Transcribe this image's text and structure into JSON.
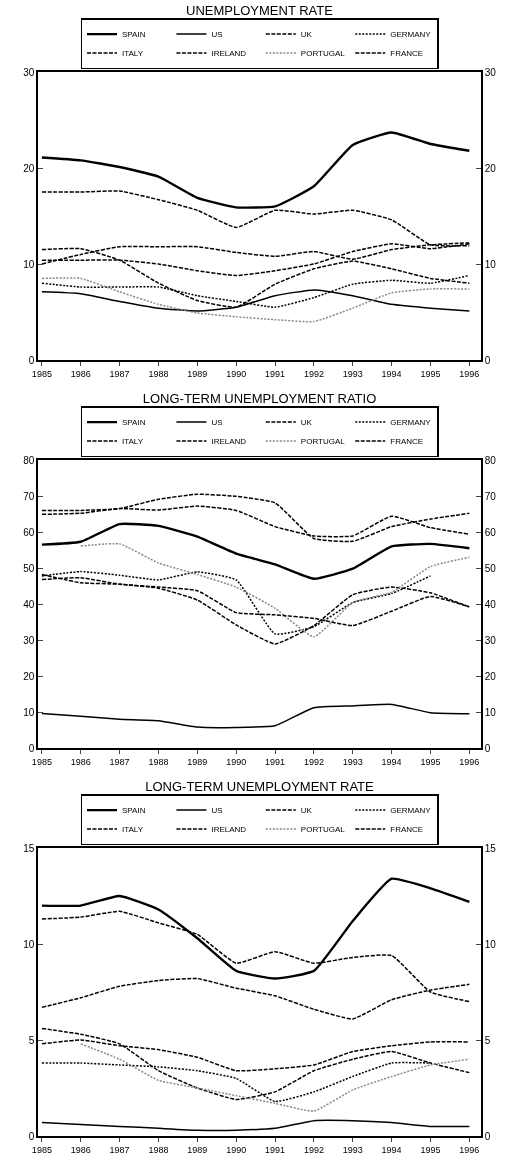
{
  "chart_data": [
    {
      "type": "line",
      "title": "UNEMPLOYMENT RATE",
      "x": [
        1985,
        1986,
        1987,
        1988,
        1989,
        1990,
        1991,
        1992,
        1993,
        1994,
        1995,
        1996
      ],
      "xlim": [
        1984.9,
        1996.3
      ],
      "xticks": [
        1985,
        1986,
        1987,
        1988,
        1989,
        1990,
        1991,
        1992,
        1993,
        1994,
        1995,
        1996
      ],
      "ylim": [
        0,
        30
      ],
      "yticks": [
        0,
        10,
        20,
        30
      ],
      "y2lim": [
        0,
        30
      ],
      "y2ticks": [
        0,
        10,
        20,
        30
      ],
      "grid": false,
      "legend": "top",
      "marker": "none",
      "series": [
        {
          "name": "SPAIN",
          "color": "#000000",
          "line_style": "solid",
          "values": [
            21.1,
            20.8,
            20.1,
            19.1,
            16.9,
            15.9,
            16.0,
            18.1,
            22.4,
            23.7,
            22.5,
            21.8
          ]
        },
        {
          "name": "US",
          "color": "#000000",
          "line_style": "solid",
          "values": [
            7.1,
            6.9,
            6.1,
            5.4,
            5.1,
            5.5,
            6.7,
            7.3,
            6.7,
            5.8,
            5.4,
            5.1
          ]
        },
        {
          "name": "UK",
          "color": "#000000",
          "line_style": "dashed",
          "values": [
            11.5,
            11.6,
            10.4,
            8.0,
            6.2,
            5.5,
            7.9,
            9.5,
            10.3,
            9.5,
            8.5,
            8.0
          ]
        },
        {
          "name": "GERMANY",
          "color": "#000000",
          "line_style": "dotted",
          "values": [
            8.0,
            7.6,
            7.6,
            7.6,
            6.7,
            6.1,
            5.5,
            6.5,
            7.9,
            8.3,
            8.0,
            8.8
          ]
        },
        {
          "name": "ITALY",
          "color": "#000000",
          "line_style": "dashed",
          "values": [
            10.0,
            11.0,
            11.8,
            11.8,
            11.8,
            11.2,
            10.8,
            11.3,
            10.5,
            11.5,
            12.0,
            12.2
          ]
        },
        {
          "name": "IRELAND",
          "color": "#000000",
          "line_style": "dashed",
          "values": [
            17.5,
            17.5,
            17.6,
            16.7,
            15.6,
            13.8,
            15.6,
            15.2,
            15.6,
            14.6,
            12.0,
            11.9
          ]
        },
        {
          "name": "PORTUGAL",
          "color": "#888888",
          "line_style": "dotted",
          "values": [
            8.5,
            8.5,
            7.1,
            5.8,
            4.9,
            4.5,
            4.2,
            4.0,
            5.4,
            7.0,
            7.4,
            7.4
          ]
        },
        {
          "name": "FRANCE",
          "color": "#000000",
          "line_style": "dashed",
          "values": [
            10.4,
            10.4,
            10.4,
            10.0,
            9.3,
            8.8,
            9.3,
            10.0,
            11.3,
            12.1,
            11.6,
            12.1
          ]
        }
      ]
    },
    {
      "type": "line",
      "title": "LONG-TERM UNEMPLOYMENT RATIO",
      "x": [
        1985,
        1986,
        1987,
        1988,
        1989,
        1990,
        1991,
        1992,
        1993,
        1994,
        1995,
        1996
      ],
      "xlim": [
        1984.9,
        1996.3
      ],
      "xticks": [
        1985,
        1986,
        1987,
        1988,
        1989,
        1990,
        1991,
        1992,
        1993,
        1994,
        1995,
        1996
      ],
      "ylim": [
        0,
        80
      ],
      "yticks": [
        0,
        10,
        20,
        30,
        40,
        50,
        60,
        70,
        80
      ],
      "y2lim": [
        0,
        80
      ],
      "y2ticks": [
        0,
        10,
        20,
        30,
        40,
        50,
        60,
        70,
        80
      ],
      "grid": false,
      "legend": "top",
      "marker": "none",
      "series": [
        {
          "name": "SPAIN",
          "color": "#000000",
          "line_style": "solid",
          "values": [
            56.5,
            57.3,
            62.2,
            61.7,
            58.7,
            54.0,
            51.0,
            47.0,
            49.8,
            56.0,
            56.7,
            55.5
          ]
        },
        {
          "name": "US",
          "color": "#000000",
          "line_style": "solid",
          "values": [
            9.6,
            8.8,
            8.0,
            7.6,
            5.8,
            5.7,
            6.2,
            11.2,
            11.7,
            12.1,
            9.8,
            9.5
          ]
        },
        {
          "name": "UK",
          "color": "#000000",
          "line_style": "dashed",
          "values": [
            48.2,
            45.9,
            45.5,
            44.4,
            41.1,
            34.2,
            28.9,
            34.0,
            42.6,
            44.7,
            43.1,
            39.2
          ]
        },
        {
          "name": "GERMANY",
          "color": "#000000",
          "line_style": "dotted",
          "values": [
            47.8,
            49.0,
            48.0,
            46.7,
            48.9,
            46.7,
            31.7,
            33.7,
            40.4,
            42.9,
            47.8,
            null
          ]
        },
        {
          "name": "ITALY",
          "color": "#000000",
          "line_style": "dashed",
          "values": [
            66.0,
            66.0,
            66.5,
            69.1,
            70.5,
            69.9,
            68.1,
            58.2,
            57.4,
            61.5,
            63.6,
            65.2
          ]
        },
        {
          "name": "IRELAND",
          "color": "#000000",
          "line_style": "dashed",
          "values": [
            64.9,
            65.2,
            66.5,
            66.1,
            67.2,
            66.0,
            61.5,
            58.9,
            58.9,
            64.4,
            61.2,
            59.4
          ]
        },
        {
          "name": "PORTUGAL",
          "color": "#888888",
          "line_style": "dotted",
          "values": [
            null,
            56.1,
            56.7,
            51.4,
            48.2,
            44.7,
            38.8,
            30.9,
            40.4,
            43.3,
            50.4,
            53.0
          ]
        },
        {
          "name": "FRANCE",
          "color": "#000000",
          "line_style": "dashed",
          "values": [
            46.8,
            47.3,
            45.5,
            44.7,
            43.7,
            37.6,
            37.0,
            36.0,
            34.0,
            38.0,
            42.1,
            39.2
          ]
        }
      ]
    },
    {
      "type": "line",
      "title": "LONG-TERM UNEMPLOYMENT RATE",
      "x": [
        1985,
        1986,
        1987,
        1988,
        1989,
        1990,
        1991,
        1992,
        1993,
        1994,
        1995,
        1996
      ],
      "xlim": [
        1984.9,
        1996.3
      ],
      "xticks": [
        1985,
        1986,
        1987,
        1988,
        1989,
        1990,
        1991,
        1992,
        1993,
        1994,
        1995,
        1996
      ],
      "ylim": [
        0,
        15
      ],
      "yticks": [
        0,
        5,
        10,
        15
      ],
      "y2lim": [
        0,
        15
      ],
      "y2ticks": [
        0,
        5,
        10,
        15
      ],
      "grid": false,
      "legend": "top",
      "marker": "none",
      "series": [
        {
          "name": "SPAIN",
          "color": "#000000",
          "line_style": "solid",
          "values": [
            12.0,
            12.0,
            12.5,
            11.8,
            10.3,
            8.6,
            8.2,
            8.6,
            11.2,
            13.4,
            12.9,
            12.2
          ]
        },
        {
          "name": "US",
          "color": "#000000",
          "line_style": "solid",
          "values": [
            0.7,
            0.6,
            0.5,
            0.4,
            0.3,
            0.3,
            0.4,
            0.8,
            0.8,
            0.7,
            0.5,
            0.5
          ]
        },
        {
          "name": "UK",
          "color": "#000000",
          "line_style": "dashed",
          "values": [
            5.6,
            5.3,
            4.8,
            3.4,
            2.5,
            1.9,
            2.3,
            3.4,
            4.0,
            4.4,
            3.8,
            3.3
          ]
        },
        {
          "name": "GERMANY",
          "color": "#000000",
          "line_style": "dotted",
          "values": [
            3.8,
            3.8,
            3.7,
            3.6,
            3.4,
            3.0,
            1.8,
            2.3,
            3.1,
            3.8,
            3.8,
            null
          ]
        },
        {
          "name": "ITALY",
          "color": "#000000",
          "line_style": "dashed",
          "values": [
            6.7,
            7.2,
            7.8,
            8.1,
            8.2,
            7.7,
            7.3,
            6.6,
            6.1,
            7.1,
            7.6,
            7.9
          ]
        },
        {
          "name": "IRELAND",
          "color": "#000000",
          "line_style": "dashed",
          "values": [
            11.3,
            11.4,
            11.7,
            11.1,
            10.5,
            9.0,
            9.6,
            9.0,
            9.3,
            9.4,
            7.5,
            7.0
          ]
        },
        {
          "name": "PORTUGAL",
          "color": "#888888",
          "line_style": "dotted",
          "values": [
            null,
            4.8,
            4.0,
            2.9,
            2.5,
            2.1,
            1.7,
            1.3,
            2.4,
            3.1,
            3.7,
            4.0
          ]
        },
        {
          "name": "FRANCE",
          "color": "#000000",
          "line_style": "dashed",
          "values": [
            4.8,
            5.0,
            4.7,
            4.5,
            4.1,
            3.4,
            3.5,
            3.7,
            4.4,
            4.7,
            4.9,
            4.9
          ]
        }
      ]
    }
  ]
}
